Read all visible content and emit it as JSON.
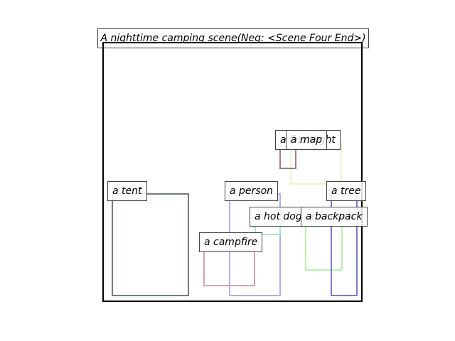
{
  "title": "A nighttime camping scene(Neg: <Scene Four End>)",
  "objects": [
    {
      "key": "tent",
      "label": "a tent",
      "color": "#6f7f72"
    },
    {
      "key": "campfire",
      "label": "a campfire",
      "color": "#dba0a8"
    },
    {
      "key": "person",
      "label": "a person",
      "color": "#a9b2ea"
    },
    {
      "key": "hot_dog",
      "label": "a hot dog on a stick",
      "color": "#a8e4d4"
    },
    {
      "key": "backpack",
      "label": "a backpack",
      "color": "#b8f3a8"
    },
    {
      "key": "tree",
      "label": "a tree",
      "color": "#7b78d4"
    },
    {
      "key": "flashlight",
      "label": "a flashlight",
      "color": "#eef3cc"
    },
    {
      "key": "map",
      "label": "a map",
      "color": "#9c7f86"
    }
  ]
}
